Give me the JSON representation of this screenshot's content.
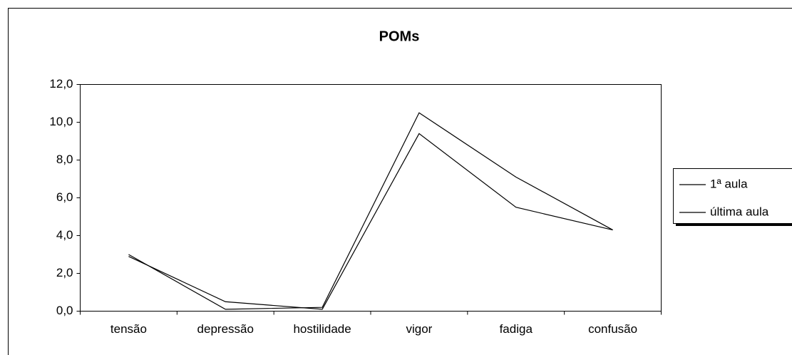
{
  "chart_data": {
    "type": "line",
    "title": "POMs",
    "categories": [
      "tensão",
      "depressão",
      "hostilidade",
      "vigor",
      "fadiga",
      "confusão"
    ],
    "series": [
      {
        "name": "1ª aula",
        "color": "#000000",
        "values": [
          3.0,
          0.1,
          0.2,
          10.5,
          7.1,
          4.3
        ]
      },
      {
        "name": "última aula",
        "color": "#000000",
        "values": [
          2.9,
          0.5,
          0.1,
          9.4,
          5.5,
          4.3
        ]
      }
    ],
    "ylim": [
      0,
      12
    ],
    "yticks": [
      {
        "value": 0,
        "label": "0,0"
      },
      {
        "value": 2,
        "label": "2,0"
      },
      {
        "value": 4,
        "label": "4,0"
      },
      {
        "value": 6,
        "label": "6,0"
      },
      {
        "value": 8,
        "label": "8,0"
      },
      {
        "value": 10,
        "label": "10,0"
      },
      {
        "value": 12,
        "label": "12,0"
      }
    ],
    "legend": "right"
  }
}
